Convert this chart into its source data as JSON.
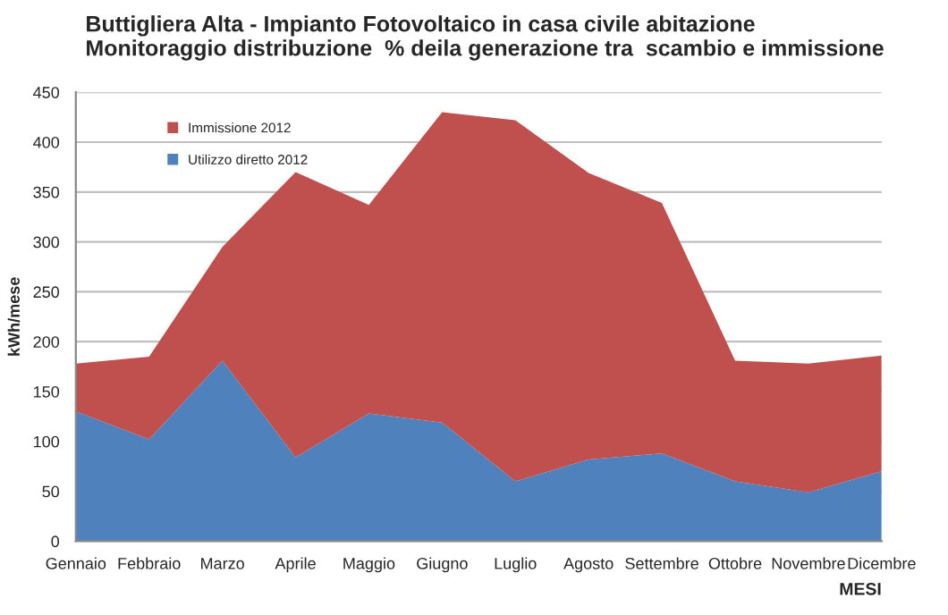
{
  "chart_data": {
    "type": "area",
    "stacked": true,
    "title": "Buttigliera Alta - Impianto Fotovoltaico in casa civile abitazione\nMonitoraggio distribuzione  % deila generazione tra  scambio e immissione",
    "xlabel": "MESI",
    "ylabel": "kWh/mese",
    "categories": [
      "Gennaio",
      "Febbraio",
      "Marzo",
      "Aprile",
      "Maggio",
      "Giugno",
      "Luglio",
      "Agosto",
      "Settembre",
      "Ottobre",
      "Novembre",
      "Dicembre"
    ],
    "series": [
      {
        "name": "Utilizzo diretto 2012",
        "color": "#4f81bd",
        "values": [
          130,
          102,
          181,
          84,
          128,
          119,
          60,
          82,
          88,
          60,
          49,
          70
        ]
      },
      {
        "name": "Immissione 2012",
        "color": "#c0504d",
        "values": [
          48,
          83,
          114,
          286,
          209,
          311,
          362,
          287,
          251,
          121,
          129,
          116
        ]
      }
    ],
    "ylim": [
      0,
      450
    ],
    "yticks": [
      0,
      50,
      100,
      150,
      200,
      250,
      300,
      350,
      400,
      450
    ],
    "grid": "y",
    "legend": "top left"
  }
}
